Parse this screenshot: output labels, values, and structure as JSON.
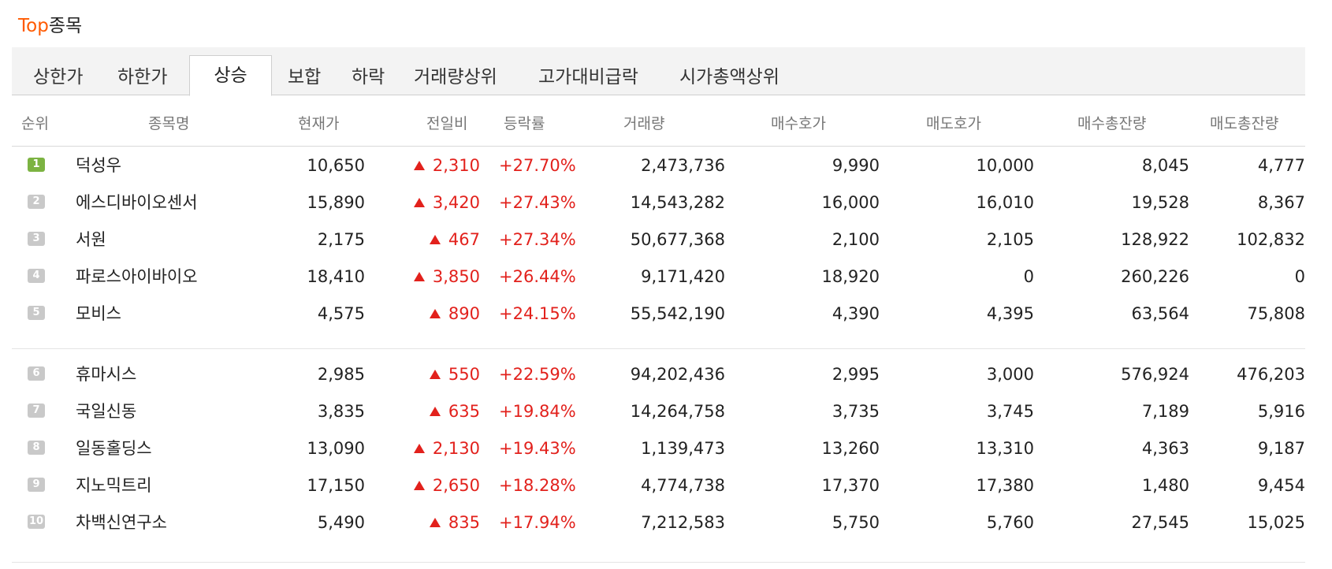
{
  "title": {
    "accent": "Top",
    "rest": "종목"
  },
  "tabs": [
    {
      "label": "상한가"
    },
    {
      "label": "하한가"
    },
    {
      "label": "상승",
      "active": true
    },
    {
      "label": "보합"
    },
    {
      "label": "하락"
    },
    {
      "label": "거래량상위"
    },
    {
      "label": "고가대비급락"
    },
    {
      "label": "시가총액상위"
    }
  ],
  "headers": [
    "순위",
    "종목명",
    "현재가",
    "전일비",
    "등락률",
    "거래량",
    "매수호가",
    "매도호가",
    "매수총잔량",
    "매도총잔량"
  ],
  "rows": [
    {
      "rank": "1",
      "name": "덕성우",
      "price": "10,650",
      "change": "2,310",
      "rate": "+27.70%",
      "volume": "2,473,736",
      "bid": "9,990",
      "ask": "10,000",
      "bid_total": "8,045",
      "ask_total": "4,777"
    },
    {
      "rank": "2",
      "name": "에스디바이오센서",
      "price": "15,890",
      "change": "3,420",
      "rate": "+27.43%",
      "volume": "14,543,282",
      "bid": "16,000",
      "ask": "16,010",
      "bid_total": "19,528",
      "ask_total": "8,367"
    },
    {
      "rank": "3",
      "name": "서원",
      "price": "2,175",
      "change": "467",
      "rate": "+27.34%",
      "volume": "50,677,368",
      "bid": "2,100",
      "ask": "2,105",
      "bid_total": "128,922",
      "ask_total": "102,832"
    },
    {
      "rank": "4",
      "name": "파로스아이바이오",
      "price": "18,410",
      "change": "3,850",
      "rate": "+26.44%",
      "volume": "9,171,420",
      "bid": "18,920",
      "ask": "0",
      "bid_total": "260,226",
      "ask_total": "0"
    },
    {
      "rank": "5",
      "name": "모비스",
      "price": "4,575",
      "change": "890",
      "rate": "+24.15%",
      "volume": "55,542,190",
      "bid": "4,390",
      "ask": "4,395",
      "bid_total": "63,564",
      "ask_total": "75,808"
    },
    {
      "rank": "6",
      "name": "휴마시스",
      "price": "2,985",
      "change": "550",
      "rate": "+22.59%",
      "volume": "94,202,436",
      "bid": "2,995",
      "ask": "3,000",
      "bid_total": "576,924",
      "ask_total": "476,203"
    },
    {
      "rank": "7",
      "name": "국일신동",
      "price": "3,835",
      "change": "635",
      "rate": "+19.84%",
      "volume": "14,264,758",
      "bid": "3,735",
      "ask": "3,745",
      "bid_total": "7,189",
      "ask_total": "5,916"
    },
    {
      "rank": "8",
      "name": "일동홀딩스",
      "price": "13,090",
      "change": "2,130",
      "rate": "+19.43%",
      "volume": "1,139,473",
      "bid": "13,260",
      "ask": "13,310",
      "bid_total": "4,363",
      "ask_total": "9,187"
    },
    {
      "rank": "9",
      "name": "지노믹트리",
      "price": "17,150",
      "change": "2,650",
      "rate": "+18.28%",
      "volume": "4,774,738",
      "bid": "17,370",
      "ask": "17,380",
      "bid_total": "1,480",
      "ask_total": "9,454"
    },
    {
      "rank": "10",
      "name": "차백신연구소",
      "price": "5,490",
      "change": "835",
      "rate": "+17.94%",
      "volume": "7,212,583",
      "bid": "5,750",
      "ask": "5,760",
      "bid_total": "27,545",
      "ask_total": "15,025"
    }
  ],
  "colors": {
    "accent": "#ff5a00",
    "up": "#e2211c",
    "rank_top": "#7cb342",
    "rank_other": "#c9c9c9",
    "tabbar_bg": "#f3f3f3"
  }
}
